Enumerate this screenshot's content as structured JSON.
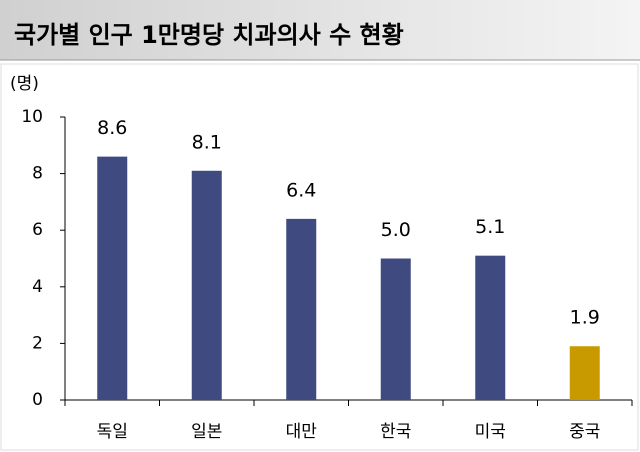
{
  "chart_data": {
    "type": "bar",
    "title": "국가별 인구 1만명당 치과의사 수 현황",
    "y_label": "(명)",
    "categories": [
      "독일",
      "일본",
      "대만",
      "한국",
      "미국",
      "중국"
    ],
    "values": [
      8.6,
      8.1,
      6.4,
      5.0,
      5.1,
      1.9
    ],
    "value_labels": [
      "8.6",
      "8.1",
      "6.4",
      "5.0",
      "5.1",
      "1.9"
    ],
    "colors": [
      "#3f4a80",
      "#3f4a80",
      "#3f4a80",
      "#3f4a80",
      "#3f4a80",
      "#c99a00"
    ],
    "ylim": [
      0,
      10
    ],
    "yticks": [
      0,
      2,
      4,
      6,
      8,
      10
    ],
    "grid": false
  }
}
